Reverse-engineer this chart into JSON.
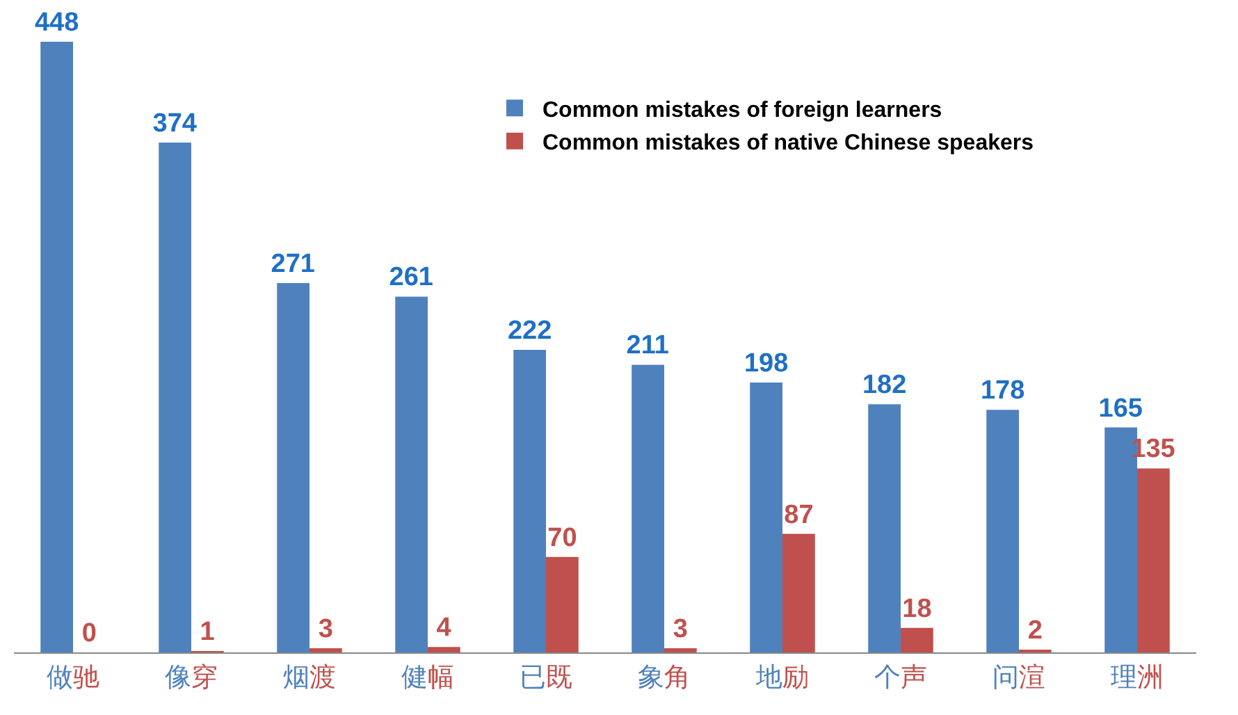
{
  "chart_data": {
    "type": "bar",
    "categories": [
      "做驰",
      "像穿",
      "烟渡",
      "健幅",
      "已既",
      "象角",
      "地励",
      "个声",
      "问渲",
      "理洲"
    ],
    "series": [
      {
        "name": "Common mistakes of foreign learners",
        "color": "#4f81bd",
        "values": [
          448,
          374,
          271,
          261,
          222,
          211,
          198,
          182,
          178,
          165
        ]
      },
      {
        "name": "Common mistakes of native Chinese speakers",
        "color": "#c0504d",
        "values": [
          0,
          1,
          3,
          4,
          70,
          3,
          87,
          18,
          2,
          135
        ]
      }
    ],
    "data_labels": true,
    "legend": "top right"
  }
}
